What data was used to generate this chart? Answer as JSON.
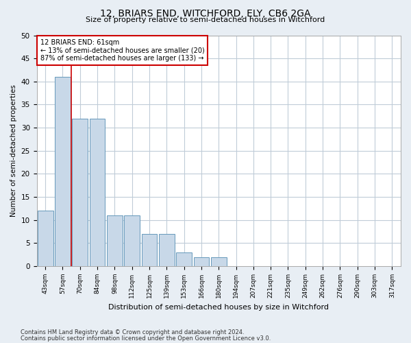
{
  "title": "12, BRIARS END, WITCHFORD, ELY, CB6 2GA",
  "subtitle": "Size of property relative to semi-detached houses in Witchford",
  "xlabel": "Distribution of semi-detached houses by size in Witchford",
  "ylabel": "Number of semi-detached properties",
  "bar_labels": [
    "43sqm",
    "57sqm",
    "70sqm",
    "84sqm",
    "98sqm",
    "112sqm",
    "125sqm",
    "139sqm",
    "153sqm",
    "166sqm",
    "180sqm",
    "194sqm",
    "207sqm",
    "221sqm",
    "235sqm",
    "249sqm",
    "262sqm",
    "276sqm",
    "290sqm",
    "303sqm",
    "317sqm"
  ],
  "bar_values": [
    12,
    41,
    32,
    32,
    11,
    11,
    7,
    7,
    3,
    2,
    2,
    0,
    0,
    0,
    0,
    0,
    0,
    0,
    0,
    0,
    0
  ],
  "bar_color": "#c8d8e8",
  "bar_edgecolor": "#6699bb",
  "property_label": "12 BRIARS END: 61sqm",
  "pct_smaller": 13,
  "pct_larger": 87,
  "count_smaller": 20,
  "count_larger": 133,
  "vline_x": 1.5,
  "ylim": [
    0,
    50
  ],
  "annotation_box_color": "#ffffff",
  "annotation_box_edgecolor": "#cc0000",
  "vline_color": "#cc0000",
  "footer_line1": "Contains HM Land Registry data © Crown copyright and database right 2024.",
  "footer_line2": "Contains public sector information licensed under the Open Government Licence v3.0.",
  "background_color": "#e8eef4",
  "plot_background_color": "#ffffff",
  "grid_color": "#c0ccd8"
}
